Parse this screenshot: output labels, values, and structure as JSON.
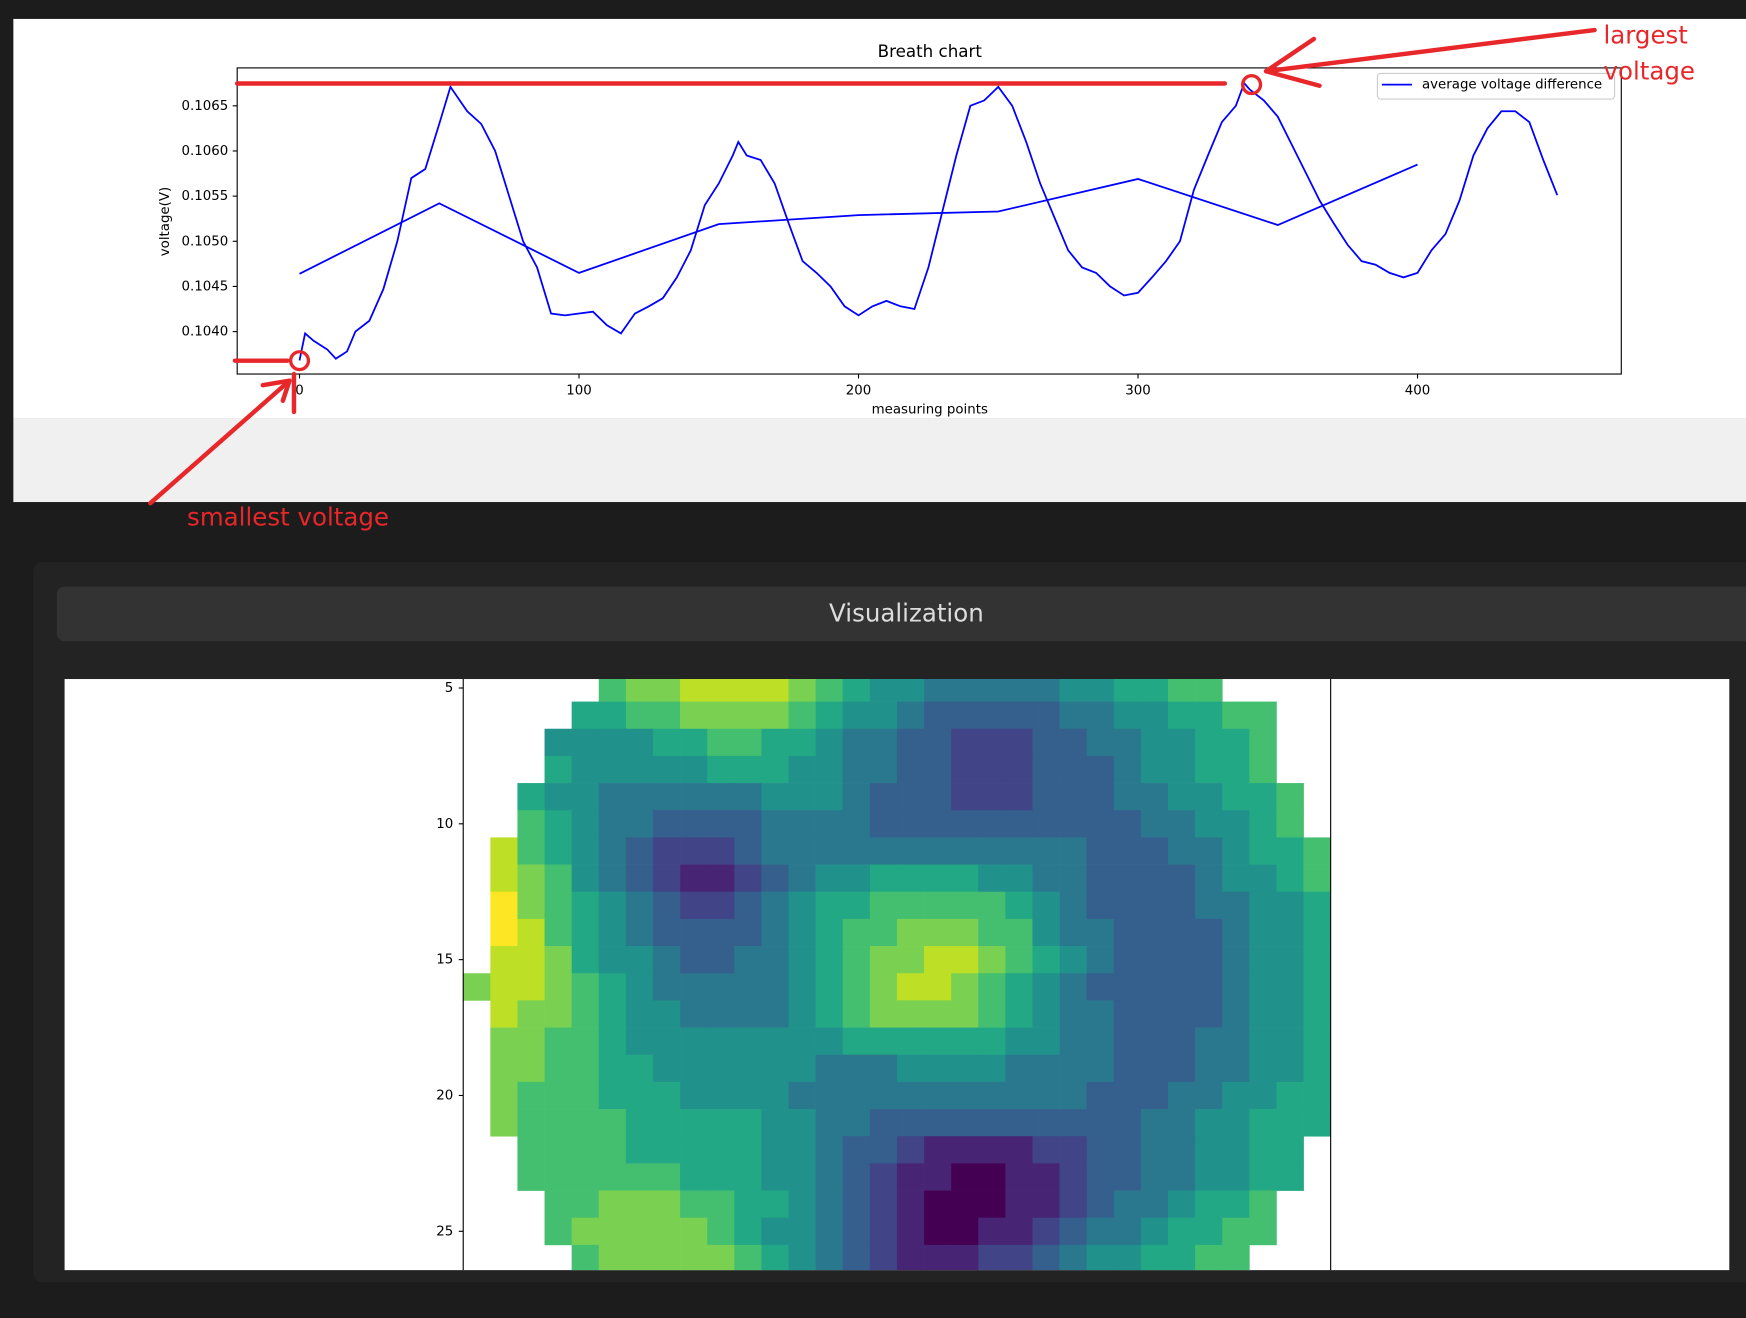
{
  "chart_data": [
    {
      "type": "line",
      "title": "Breath chart",
      "xlabel": "measuring points",
      "ylabel": "voltage(V)",
      "xlim": [
        -22.3,
        472.9
      ],
      "xticks": [
        0,
        100,
        200,
        300,
        400
      ],
      "ylim": [
        0.10353,
        0.10692
      ],
      "yticks": [
        {
          "value": 0.104,
          "label": "0.1040"
        },
        0.1045,
        {
          "value": 0.105,
          "label": "0.1050"
        },
        0.1055,
        {
          "value": 0.106,
          "label": "0.1060"
        },
        0.1065
      ],
      "legend": "upper right",
      "series": [
        {
          "name": "average voltage difference",
          "color": "#0000ff",
          "x": [
            0,
            2,
            5,
            10,
            13,
            17,
            20,
            25,
            30,
            35,
            40,
            45,
            50,
            54,
            60,
            65,
            70,
            75,
            80,
            85,
            90,
            95,
            100,
            105,
            110,
            115,
            120,
            125,
            130,
            135,
            140,
            145,
            150,
            155,
            157,
            160,
            165,
            170,
            175,
            180,
            185,
            190,
            195,
            200,
            205,
            210,
            215,
            220,
            225,
            230,
            235,
            240,
            245,
            250,
            255,
            260,
            265,
            270,
            275,
            280,
            285,
            290,
            295,
            300,
            305,
            310,
            315,
            320,
            325,
            330,
            335,
            338,
            340,
            345,
            350,
            355,
            360,
            365,
            370,
            375,
            380,
            385,
            390,
            395,
            400,
            405,
            410,
            415,
            420,
            425,
            430,
            435,
            440,
            445,
            450
          ],
          "values": [
            0.10368,
            0.10398,
            0.1039,
            0.1038,
            0.1037,
            0.10378,
            0.104,
            0.10412,
            0.10447,
            0.105,
            0.1057,
            0.1058,
            0.1063,
            0.10671,
            0.10644,
            0.1063,
            0.106,
            0.1055,
            0.105,
            0.10471,
            0.1042,
            0.10418,
            0.1042,
            0.10422,
            0.10407,
            0.10398,
            0.1042,
            0.10428,
            0.10437,
            0.1046,
            0.1049,
            0.1054,
            0.10564,
            0.10595,
            0.1061,
            0.10595,
            0.1059,
            0.10564,
            0.1052,
            0.10478,
            0.10465,
            0.1045,
            0.10428,
            0.10418,
            0.10428,
            0.10434,
            0.10428,
            0.10425,
            0.10471,
            0.10533,
            0.10595,
            0.1065,
            0.10656,
            0.10671,
            0.1065,
            0.1061,
            0.10564,
            0.10527,
            0.1049,
            0.10471,
            0.10465,
            0.1045,
            0.1044,
            0.10443,
            0.1046,
            0.10478,
            0.105,
            0.10557,
            0.10595,
            0.10632,
            0.1065,
            0.10675,
            0.10668,
            0.10656,
            0.10638,
            0.10607,
            0.10576,
            0.10545,
            0.1052,
            0.10496,
            0.10478,
            0.10474,
            0.10465,
            0.1046,
            0.10465,
            0.1049,
            0.10508,
            0.10545,
            0.10595,
            0.10625,
            0.10644,
            0.10644,
            0.10632,
            0.1059,
            0.10551
          ]
        },
        {
          "color": "#0000ff",
          "x": [
            0,
            50,
            100,
            150,
            200,
            250,
            300,
            350,
            400
          ],
          "values": [
            0.10464,
            0.10542,
            0.10465,
            0.10519,
            0.10529,
            0.10533,
            0.10569,
            0.10518,
            0.10585
          ]
        }
      ],
      "annotations": [
        [
          "largest",
          "voltage"
        ],
        [
          "smallest voltage"
        ]
      ]
    },
    {
      "type": "heatmap",
      "title": "Visualization",
      "colormap": "viridis",
      "clim": [
        0,
        10
      ],
      "xlim": [
        -0.5,
        31.5
      ],
      "ylim": [
        4.67,
        26.43
      ],
      "yticks": [
        5,
        10,
        15,
        20,
        25
      ],
      "x": [
        0,
        1,
        2,
        3,
        4,
        5,
        6,
        7,
        8,
        9,
        10,
        11,
        12,
        13,
        14,
        15,
        16,
        17,
        18,
        19,
        20,
        21,
        22,
        23,
        24,
        25,
        26,
        27,
        28,
        29,
        30,
        31
      ],
      "y": [
        5,
        6,
        7,
        8,
        9,
        10,
        11,
        12,
        13,
        14,
        15,
        16,
        17,
        18,
        19,
        20,
        21,
        22,
        23,
        24,
        25,
        26
      ],
      "values": [
        [
          null,
          null,
          null,
          null,
          null,
          7,
          8,
          8,
          9,
          9,
          9,
          9,
          8,
          7,
          6,
          5,
          5,
          4,
          4,
          4,
          4,
          4,
          5,
          5,
          6,
          6,
          7,
          7,
          null,
          null,
          null,
          null
        ],
        [
          null,
          null,
          null,
          null,
          6,
          6,
          7,
          7,
          8,
          8,
          8,
          8,
          7,
          6,
          5,
          5,
          4,
          3,
          3,
          3,
          3,
          3,
          4,
          4,
          5,
          5,
          6,
          6,
          7,
          7,
          null,
          null
        ],
        [
          null,
          null,
          null,
          5,
          5,
          5,
          5,
          6,
          6,
          7,
          7,
          6,
          6,
          5,
          4,
          4,
          3,
          3,
          2,
          2,
          2,
          3,
          3,
          4,
          4,
          5,
          5,
          6,
          6,
          7,
          null,
          null
        ],
        [
          null,
          null,
          null,
          6,
          5,
          5,
          5,
          5,
          5,
          6,
          6,
          6,
          5,
          5,
          4,
          4,
          3,
          3,
          2,
          2,
          2,
          3,
          3,
          3,
          4,
          5,
          5,
          6,
          6,
          7,
          null,
          null
        ],
        [
          null,
          null,
          6,
          5,
          5,
          4,
          4,
          4,
          4,
          4,
          4,
          5,
          5,
          5,
          4,
          3,
          3,
          3,
          2,
          2,
          2,
          3,
          3,
          3,
          4,
          4,
          5,
          5,
          6,
          6,
          7,
          null
        ],
        [
          null,
          null,
          7,
          6,
          5,
          4,
          4,
          3,
          3,
          3,
          3,
          4,
          4,
          4,
          4,
          3,
          3,
          3,
          3,
          3,
          3,
          3,
          3,
          3,
          3,
          4,
          4,
          5,
          5,
          6,
          7,
          null
        ],
        [
          null,
          9,
          7,
          6,
          5,
          4,
          3,
          2,
          2,
          2,
          3,
          4,
          4,
          4,
          4,
          4,
          4,
          4,
          4,
          4,
          4,
          4,
          4,
          3,
          3,
          3,
          4,
          4,
          5,
          6,
          6,
          7
        ],
        [
          null,
          9,
          8,
          7,
          5,
          4,
          3,
          2,
          1,
          1,
          2,
          3,
          4,
          5,
          5,
          6,
          6,
          6,
          6,
          5,
          5,
          4,
          4,
          3,
          3,
          3,
          3,
          4,
          5,
          5,
          6,
          7
        ],
        [
          null,
          10,
          8,
          7,
          6,
          5,
          4,
          3,
          2,
          2,
          3,
          4,
          5,
          6,
          6,
          7,
          7,
          7,
          7,
          7,
          6,
          5,
          4,
          3,
          3,
          3,
          3,
          4,
          4,
          5,
          5,
          6
        ],
        [
          null,
          10,
          9,
          7,
          6,
          5,
          4,
          3,
          3,
          3,
          3,
          4,
          5,
          6,
          7,
          7,
          8,
          8,
          8,
          7,
          7,
          5,
          4,
          4,
          3,
          3,
          3,
          3,
          4,
          5,
          5,
          6
        ],
        [
          null,
          9,
          9,
          8,
          6,
          5,
          5,
          4,
          3,
          3,
          4,
          4,
          5,
          6,
          7,
          8,
          8,
          9,
          9,
          8,
          7,
          6,
          5,
          4,
          3,
          3,
          3,
          3,
          4,
          5,
          5,
          6
        ],
        [
          8,
          9,
          9,
          8,
          7,
          6,
          5,
          4,
          4,
          4,
          4,
          4,
          5,
          6,
          7,
          8,
          9,
          9,
          8,
          7,
          6,
          5,
          4,
          3,
          3,
          3,
          3,
          3,
          4,
          5,
          5,
          6
        ],
        [
          null,
          9,
          8,
          8,
          7,
          6,
          5,
          5,
          4,
          4,
          4,
          4,
          5,
          6,
          7,
          8,
          8,
          8,
          8,
          7,
          6,
          5,
          4,
          4,
          3,
          3,
          3,
          3,
          4,
          5,
          5,
          6
        ],
        [
          null,
          8,
          8,
          7,
          7,
          6,
          5,
          5,
          5,
          5,
          5,
          5,
          5,
          5,
          6,
          6,
          6,
          6,
          6,
          6,
          5,
          5,
          4,
          4,
          3,
          3,
          3,
          4,
          4,
          5,
          5,
          6
        ],
        [
          null,
          8,
          8,
          7,
          7,
          6,
          6,
          5,
          5,
          5,
          5,
          5,
          5,
          4,
          4,
          4,
          5,
          5,
          5,
          5,
          4,
          4,
          4,
          4,
          3,
          3,
          3,
          4,
          4,
          5,
          5,
          6
        ],
        [
          null,
          8,
          7,
          7,
          7,
          6,
          6,
          6,
          5,
          5,
          5,
          5,
          4,
          4,
          4,
          4,
          4,
          4,
          4,
          4,
          4,
          4,
          4,
          3,
          3,
          3,
          4,
          4,
          5,
          5,
          6,
          6
        ],
        [
          null,
          8,
          7,
          7,
          7,
          7,
          6,
          6,
          6,
          6,
          6,
          5,
          5,
          4,
          4,
          3,
          3,
          3,
          3,
          3,
          3,
          3,
          3,
          3,
          3,
          4,
          4,
          5,
          5,
          6,
          6,
          6
        ],
        [
          null,
          null,
          7,
          7,
          7,
          7,
          6,
          6,
          6,
          6,
          6,
          5,
          5,
          4,
          3,
          3,
          2,
          1,
          1,
          1,
          1,
          2,
          2,
          3,
          3,
          4,
          4,
          5,
          5,
          6,
          6,
          null
        ],
        [
          null,
          null,
          7,
          7,
          7,
          7,
          7,
          7,
          6,
          6,
          6,
          5,
          5,
          4,
          3,
          2,
          1,
          1,
          0,
          0,
          1,
          1,
          2,
          3,
          3,
          4,
          4,
          5,
          5,
          6,
          6,
          null
        ],
        [
          null,
          null,
          null,
          7,
          7,
          8,
          8,
          8,
          7,
          7,
          6,
          6,
          5,
          4,
          3,
          2,
          1,
          0,
          0,
          0,
          1,
          1,
          2,
          3,
          4,
          4,
          5,
          6,
          6,
          7,
          null,
          null
        ],
        [
          null,
          null,
          null,
          7,
          8,
          8,
          8,
          8,
          8,
          7,
          6,
          5,
          5,
          4,
          3,
          2,
          1,
          0,
          0,
          1,
          1,
          2,
          3,
          4,
          4,
          5,
          6,
          6,
          7,
          7,
          null,
          null
        ],
        [
          null,
          null,
          null,
          null,
          7,
          8,
          8,
          8,
          8,
          8,
          7,
          6,
          5,
          4,
          3,
          2,
          1,
          1,
          1,
          2,
          2,
          3,
          4,
          5,
          5,
          6,
          6,
          7,
          7,
          null,
          null,
          null
        ]
      ]
    }
  ]
}
